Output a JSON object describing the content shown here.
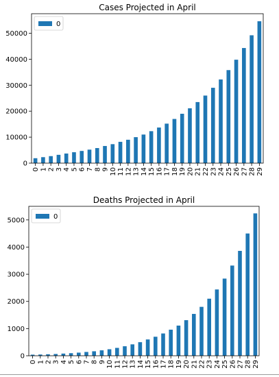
{
  "chart_data": [
    {
      "type": "bar",
      "title": "Cases Projected in April",
      "categories": [
        "0",
        "1",
        "2",
        "3",
        "4",
        "5",
        "6",
        "7",
        "8",
        "9",
        "10",
        "11",
        "12",
        "13",
        "14",
        "15",
        "16",
        "17",
        "18",
        "19",
        "20",
        "21",
        "22",
        "23",
        "24",
        "25",
        "26",
        "27",
        "28",
        "29"
      ],
      "series": [
        {
          "name": "0",
          "color": "#1f77b4",
          "values": [
            1900,
            2300,
            2700,
            3200,
            3700,
            4200,
            4700,
            5200,
            5800,
            6600,
            7300,
            8200,
            9000,
            10000,
            11000,
            12300,
            13700,
            15200,
            17000,
            19000,
            21100,
            23500,
            26000,
            29000,
            32200,
            35800,
            39800,
            44300,
            49200,
            54600
          ]
        }
      ],
      "ylim": [
        0,
        57500
      ],
      "yticks": [
        0,
        10000,
        20000,
        30000,
        40000,
        50000
      ],
      "xlabel": "",
      "ylabel": "",
      "legend": "upper-left",
      "grid": false
    },
    {
      "type": "bar",
      "title": "Deaths Projected in April",
      "categories": [
        "0",
        "1",
        "2",
        "3",
        "4",
        "5",
        "6",
        "7",
        "8",
        "9",
        "10",
        "11",
        "12",
        "13",
        "14",
        "15",
        "16",
        "17",
        "18",
        "19",
        "20",
        "21",
        "22",
        "23",
        "24",
        "25",
        "26",
        "27",
        "28",
        "29"
      ],
      "series": [
        {
          "name": "0",
          "color": "#1f77b4",
          "values": [
            40,
            45,
            55,
            65,
            80,
            95,
            115,
            140,
            165,
            200,
            240,
            290,
            350,
            420,
            500,
            600,
            700,
            820,
            960,
            1110,
            1310,
            1540,
            1800,
            2100,
            2440,
            2840,
            3320,
            3860,
            4500,
            5240
          ]
        }
      ],
      "ylim": [
        0,
        5500
      ],
      "yticks": [
        0,
        1000,
        2000,
        3000,
        4000,
        5000
      ],
      "xlabel": "",
      "ylabel": "",
      "legend": "upper-left",
      "grid": false
    }
  ]
}
